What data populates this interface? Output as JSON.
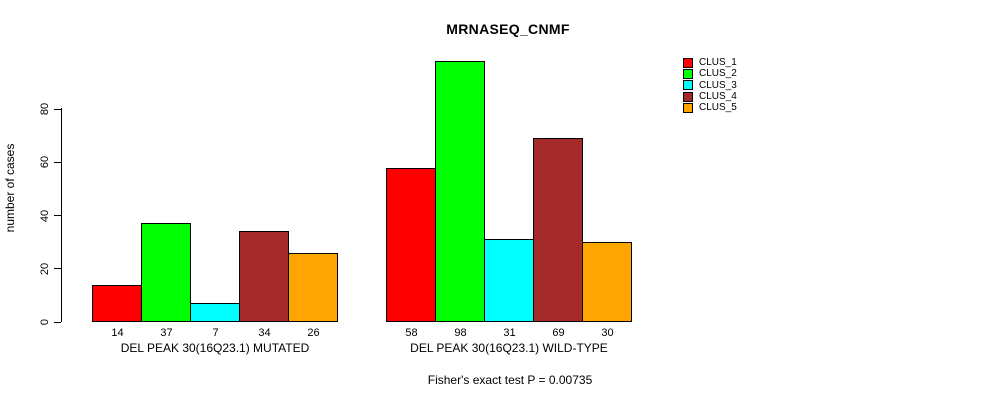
{
  "chart_data": {
    "type": "bar",
    "title": "MRNASEQ_CNMF",
    "ylabel": "number of cases",
    "yticks": [
      0,
      20,
      40,
      60,
      80
    ],
    "ylim": [
      0,
      100
    ],
    "grid": false,
    "legend_position": "top-right",
    "categories": [
      "DEL PEAK 30(16Q23.1) MUTATED",
      "DEL PEAK 30(16Q23.1) WILD-TYPE"
    ],
    "series": [
      {
        "name": "CLUS_1",
        "color": "#FF0000",
        "values": [
          14,
          58
        ]
      },
      {
        "name": "CLUS_2",
        "color": "#00FF00",
        "values": [
          37,
          98
        ]
      },
      {
        "name": "CLUS_3",
        "color": "#00FFFF",
        "values": [
          7,
          31
        ]
      },
      {
        "name": "CLUS_4",
        "color": "#A52A2A",
        "values": [
          34,
          69
        ]
      },
      {
        "name": "CLUS_5",
        "color": "#FFA500",
        "values": [
          26,
          30
        ]
      }
    ],
    "bar_value_labels": [
      [
        14,
        37,
        7,
        34,
        26
      ],
      [
        58,
        98,
        31,
        69,
        30
      ]
    ],
    "annotation": "Fisher's exact test P = 0.00735"
  }
}
